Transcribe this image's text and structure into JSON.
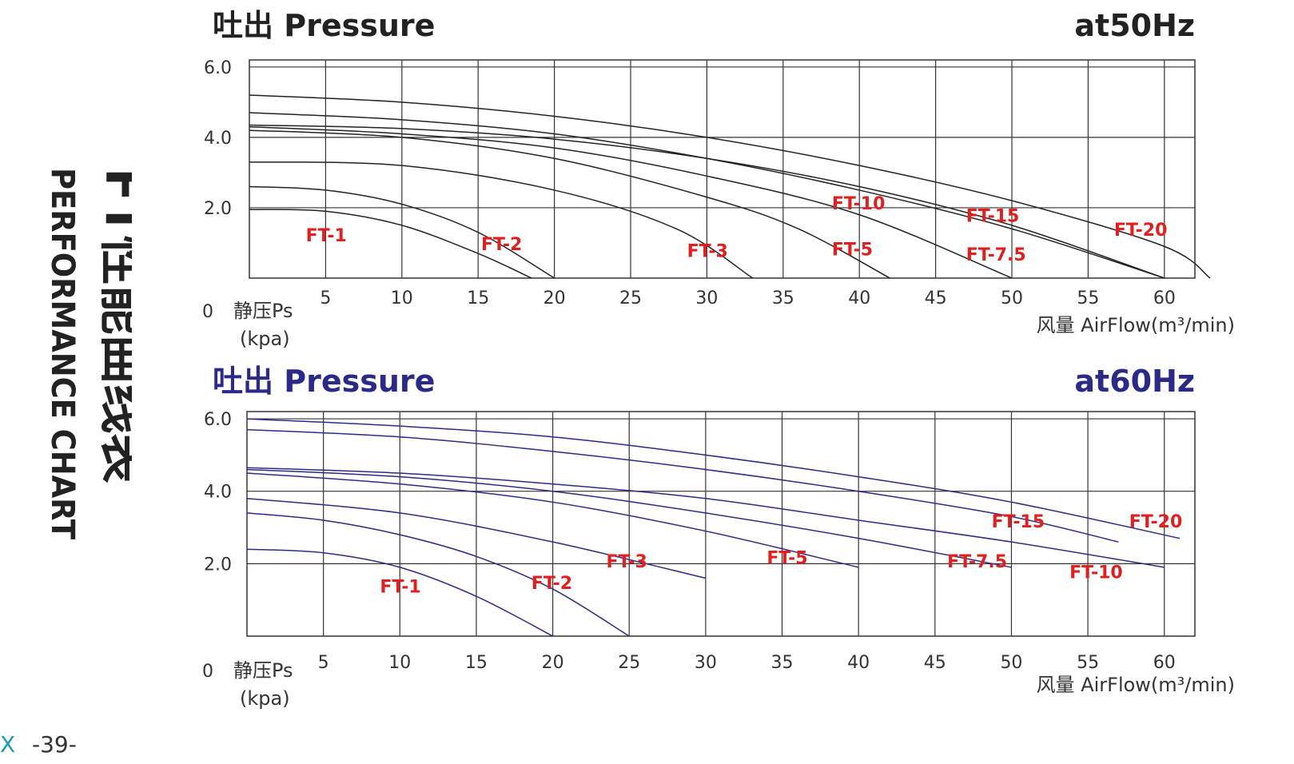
{
  "side": {
    "title_cn": "FT性能曲线表",
    "title_en": "PERFORMANCE CHART"
  },
  "page_number": "-39-",
  "edge_mark": "X",
  "chart_data": [
    {
      "type": "line",
      "title": "吐出 Pressure",
      "frequency": "at50Hz",
      "title_color": "#222222",
      "curve_color": "#222222",
      "label_color": "#e02020",
      "xlabel": "风量 AirFlow(m³/min)",
      "ylabel": [
        "静压Ps",
        "(kpa)"
      ],
      "origin_label": "0",
      "xlim": [
        0,
        62
      ],
      "ylim": [
        0,
        6.2
      ],
      "xticks": [
        5,
        10,
        15,
        20,
        25,
        30,
        35,
        40,
        45,
        50,
        55,
        60
      ],
      "yticks": [
        2.0,
        4.0,
        6.0
      ],
      "ytick_labels": [
        "2.0",
        "4.0",
        "6.0"
      ],
      "series": [
        {
          "name": "FT-1",
          "x": [
            0,
            5,
            10,
            15,
            18.5
          ],
          "y": [
            1.95,
            1.9,
            1.5,
            0.7,
            0
          ]
        },
        {
          "name": "FT-2",
          "x": [
            0,
            5,
            10,
            15,
            20
          ],
          "y": [
            2.6,
            2.5,
            2.1,
            1.3,
            0
          ]
        },
        {
          "name": "FT-3",
          "x": [
            0,
            10,
            20,
            28,
            33
          ],
          "y": [
            3.3,
            3.2,
            2.5,
            1.4,
            0
          ]
        },
        {
          "name": "FT-5",
          "x": [
            0,
            10,
            20,
            30,
            36,
            42
          ],
          "y": [
            4.2,
            4.0,
            3.4,
            2.3,
            1.4,
            0
          ]
        },
        {
          "name": "FT-7.5",
          "x": [
            0,
            10,
            20,
            30,
            40,
            50
          ],
          "y": [
            4.3,
            4.1,
            3.7,
            2.9,
            1.8,
            0
          ]
        },
        {
          "name": "FT-10",
          "x": [
            0,
            10,
            20,
            30,
            40,
            50,
            60
          ],
          "y": [
            4.7,
            4.5,
            4.1,
            3.4,
            2.5,
            1.4,
            0
          ]
        },
        {
          "name": "FT-15",
          "x": [
            0,
            10,
            20,
            30,
            40,
            50,
            60
          ],
          "y": [
            4.35,
            4.25,
            3.95,
            3.4,
            2.6,
            1.5,
            0
          ]
        },
        {
          "name": "FT-20",
          "x": [
            0,
            10,
            20,
            30,
            40,
            50,
            60,
            63
          ],
          "y": [
            5.2,
            5.0,
            4.6,
            4.0,
            3.2,
            2.2,
            0.9,
            0
          ]
        }
      ],
      "curve_labels": [
        {
          "text": "FT-1",
          "x": 3.7,
          "y": 1.05
        },
        {
          "text": "FT-2",
          "x": 15.2,
          "y": 0.8
        },
        {
          "text": "FT-3",
          "x": 28.7,
          "y": 0.6
        },
        {
          "text": "FT-5",
          "x": 38.2,
          "y": 0.65
        },
        {
          "text": "FT-7.5",
          "x": 47.0,
          "y": 0.5
        },
        {
          "text": "FT-10",
          "x": 38.2,
          "y": 1.95
        },
        {
          "text": "FT-15",
          "x": 47.0,
          "y": 1.6
        },
        {
          "text": "FT-20",
          "x": 56.7,
          "y": 1.2
        }
      ]
    },
    {
      "type": "line",
      "title": "吐出 Pressure",
      "frequency": "at60Hz",
      "title_color": "#2b2a86",
      "curve_color": "#2b2a86",
      "label_color": "#e02020",
      "xlabel": "风量 AirFlow(m³/min)",
      "ylabel": [
        "静压Ps",
        "(kpa)"
      ],
      "origin_label": "0",
      "xlim": [
        0,
        62
      ],
      "ylim": [
        0,
        6.2
      ],
      "xticks": [
        5,
        10,
        15,
        20,
        25,
        30,
        35,
        40,
        45,
        50,
        55,
        60
      ],
      "yticks": [
        2.0,
        4.0,
        6.0
      ],
      "ytick_labels": [
        "2.0",
        "4.0",
        "6.0"
      ],
      "series": [
        {
          "name": "FT-1",
          "x": [
            0,
            5,
            10,
            15,
            20
          ],
          "y": [
            2.4,
            2.3,
            1.9,
            1.1,
            0
          ]
        },
        {
          "name": "FT-2",
          "x": [
            0,
            5,
            10,
            15,
            20,
            25
          ],
          "y": [
            3.4,
            3.2,
            2.8,
            2.2,
            1.3,
            0
          ]
        },
        {
          "name": "FT-3",
          "x": [
            0,
            10,
            20,
            30
          ],
          "y": [
            3.8,
            3.4,
            2.6,
            1.6
          ]
        },
        {
          "name": "FT-5",
          "x": [
            0,
            10,
            20,
            30,
            40
          ],
          "y": [
            4.5,
            4.2,
            3.7,
            2.9,
            1.9
          ]
        },
        {
          "name": "FT-7.5",
          "x": [
            0,
            10,
            20,
            30,
            40,
            50
          ],
          "y": [
            4.6,
            4.4,
            4.0,
            3.4,
            2.7,
            1.9
          ]
        },
        {
          "name": "FT-10",
          "x": [
            0,
            10,
            20,
            30,
            40,
            50,
            60
          ],
          "y": [
            4.65,
            4.5,
            4.2,
            3.8,
            3.2,
            2.6,
            1.9
          ]
        },
        {
          "name": "FT-15",
          "x": [
            0,
            10,
            20,
            30,
            40,
            50,
            57
          ],
          "y": [
            5.7,
            5.5,
            5.1,
            4.6,
            4.0,
            3.3,
            2.6
          ]
        },
        {
          "name": "FT-20",
          "x": [
            0,
            10,
            20,
            30,
            40,
            50,
            61
          ],
          "y": [
            6.0,
            5.8,
            5.5,
            5.0,
            4.4,
            3.7,
            2.7
          ]
        }
      ],
      "curve_labels": [
        {
          "text": "FT-1",
          "x": 8.7,
          "y": 1.2
        },
        {
          "text": "FT-2",
          "x": 18.6,
          "y": 1.3
        },
        {
          "text": "FT-3",
          "x": 23.5,
          "y": 1.9
        },
        {
          "text": "FT-5",
          "x": 34.0,
          "y": 2.0
        },
        {
          "text": "FT-7.5",
          "x": 45.8,
          "y": 1.9
        },
        {
          "text": "FT-10",
          "x": 53.8,
          "y": 1.6
        },
        {
          "text": "FT-15",
          "x": 48.7,
          "y": 3.0
        },
        {
          "text": "FT-20",
          "x": 57.7,
          "y": 3.0
        }
      ]
    }
  ]
}
